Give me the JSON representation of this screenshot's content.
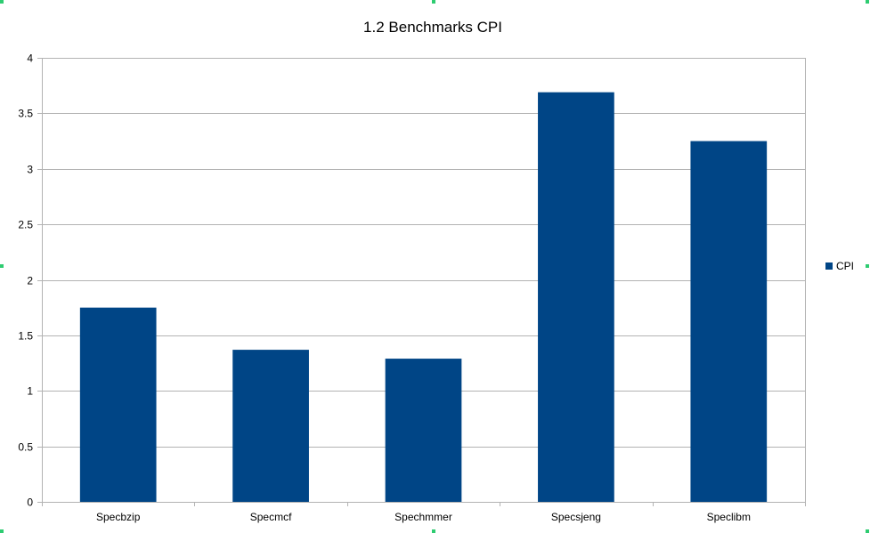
{
  "chart_data": {
    "type": "bar",
    "title": "1.2 Benchmarks CPI",
    "categories": [
      "Specbzip",
      "Specmcf",
      "Spechmmer",
      "Specsjeng",
      "Speclibm"
    ],
    "series": [
      {
        "name": "CPI",
        "values": [
          1.75,
          1.37,
          1.29,
          3.69,
          3.25
        ],
        "color": "#004586"
      }
    ],
    "xlabel": "",
    "ylabel": "",
    "ylim": [
      0,
      4
    ],
    "yticks": [
      0,
      0.5,
      1,
      1.5,
      2,
      2.5,
      3,
      3.5,
      4
    ],
    "ytick_labels": [
      "0",
      "0.5",
      "1",
      "1.5",
      "2",
      "2.5",
      "3",
      "3.5",
      "4"
    ],
    "grid": true,
    "legend": "right"
  },
  "colors": {
    "grid": "#b3b3b3",
    "axis": "#b3b3b3",
    "selection_handle": "#2ecc71"
  }
}
